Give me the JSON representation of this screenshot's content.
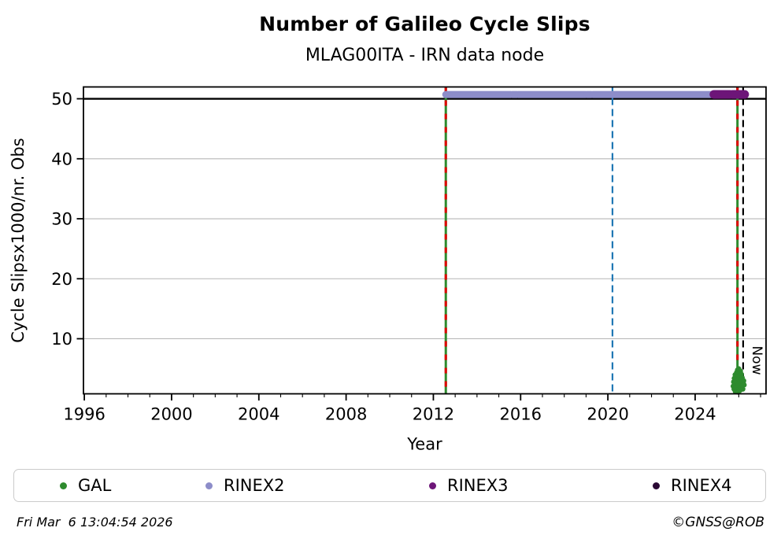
{
  "header": {
    "title": "Number of Galileo Cycle Slips",
    "subtitle": "MLAG00ITA - IRN data node"
  },
  "chart_data": {
    "type": "scatter",
    "title": "Number of Galileo Cycle Slips",
    "subtitle": "MLAG00ITA - IRN data node",
    "xlabel": "Year",
    "ylabel": "Cycle Slipsx1000/nr. Obs",
    "xlim": [
      1995.96,
      2027.25
    ],
    "ylim": [
      0.82,
      51.97
    ],
    "x_major_ticks": [
      1996,
      2000,
      2004,
      2008,
      2012,
      2016,
      2020,
      2024
    ],
    "x_minor_step": 1,
    "y_major_ticks": [
      10,
      20,
      30,
      40,
      50
    ],
    "grid": "horizontal",
    "grid_color": "#b6b6b6",
    "frame_color": "#000000",
    "hlines": [
      {
        "y": 50,
        "color": "#000000",
        "width": 2.4
      }
    ],
    "vlines": [
      {
        "name": "gal-data-start-line",
        "x": 2012.57,
        "color": "#2e8b2e",
        "width": 3,
        "dash": "",
        "overlay": {
          "color": "#e00000",
          "width": 3,
          "dash": "7 10"
        }
      },
      {
        "name": "event-line-2020",
        "x": 2020.21,
        "color": "#1f77b4",
        "width": 2.2,
        "dash": "9 5"
      },
      {
        "name": "gal-latest-marker-line",
        "x": 2025.94,
        "color": "#2e8b2e",
        "width": 3,
        "dash": "",
        "overlay": {
          "color": "#e00000",
          "width": 3,
          "dash": "7 10"
        }
      },
      {
        "name": "now-line",
        "x": 2026.2,
        "color": "#000000",
        "width": 2.2,
        "dash": "9 5",
        "label": "Now"
      }
    ],
    "series": [
      {
        "name": "GAL",
        "color": "#2e8b2e",
        "type": "points",
        "marker_radius": 3.2,
        "points": [
          [
            2025.74,
            2.1
          ],
          [
            2025.76,
            2.8
          ],
          [
            2025.78,
            1.6
          ],
          [
            2025.79,
            3.4
          ],
          [
            2025.81,
            2.3
          ],
          [
            2025.83,
            4.0
          ],
          [
            2025.84,
            1.2
          ],
          [
            2025.85,
            2.9
          ],
          [
            2025.87,
            3.6
          ],
          [
            2025.88,
            1.9
          ],
          [
            2025.89,
            2.5
          ],
          [
            2025.9,
            4.4
          ],
          [
            2025.91,
            1.4
          ],
          [
            2025.92,
            3.1
          ],
          [
            2025.93,
            2.0
          ],
          [
            2025.94,
            4.8
          ],
          [
            2025.95,
            2.7
          ],
          [
            2025.96,
            1.1
          ],
          [
            2025.97,
            3.8
          ],
          [
            2025.98,
            2.4
          ],
          [
            2025.99,
            1.7
          ],
          [
            2026.0,
            3.3
          ],
          [
            2026.0,
            5.0
          ],
          [
            2026.01,
            2.1
          ],
          [
            2026.02,
            4.2
          ],
          [
            2026.03,
            1.3
          ],
          [
            2026.04,
            2.8
          ],
          [
            2026.05,
            3.9
          ],
          [
            2026.06,
            1.8
          ],
          [
            2026.07,
            2.4
          ],
          [
            2026.08,
            4.6
          ],
          [
            2026.09,
            1.5
          ],
          [
            2026.1,
            3.2
          ],
          [
            2026.11,
            2.6
          ],
          [
            2026.12,
            4.1
          ],
          [
            2026.13,
            1.9
          ],
          [
            2026.14,
            2.9
          ],
          [
            2026.16,
            3.5
          ],
          [
            2026.17,
            2.2
          ],
          [
            2026.19,
            1.6
          ],
          [
            2026.21,
            2.7
          ],
          [
            2026.23,
            3.0
          ],
          [
            2026.25,
            2.3
          ]
        ]
      },
      {
        "name": "RINEX2",
        "color": "#8d8dc9",
        "type": "band",
        "y": 50.7,
        "thickness": 9,
        "segments": [
          [
            2012.57,
            2015.55
          ],
          [
            2015.62,
            2015.83
          ],
          [
            2015.89,
            2018.98
          ],
          [
            2019.04,
            2019.24
          ],
          [
            2019.31,
            2024.79
          ]
        ]
      },
      {
        "name": "RINEX3",
        "color": "#6d1578",
        "type": "band",
        "y": 50.72,
        "thickness": 11,
        "segments": [
          [
            2024.86,
            2025.6
          ],
          [
            2025.71,
            2026.27
          ]
        ]
      },
      {
        "name": "RINEX4",
        "color": "#2a0934",
        "type": "band",
        "y": 50.72,
        "thickness": 11,
        "segments": []
      }
    ]
  },
  "legend": {
    "items": [
      {
        "label": "GAL",
        "color": "#2e8b2e"
      },
      {
        "label": "RINEX2",
        "color": "#8d8dc9"
      },
      {
        "label": "RINEX3",
        "color": "#6d1578"
      },
      {
        "label": "RINEX4",
        "color": "#2a0934"
      }
    ]
  },
  "footer": {
    "left": "Fri Mar  6 13:04:54 2026",
    "right": "©GNSS@ROB"
  }
}
